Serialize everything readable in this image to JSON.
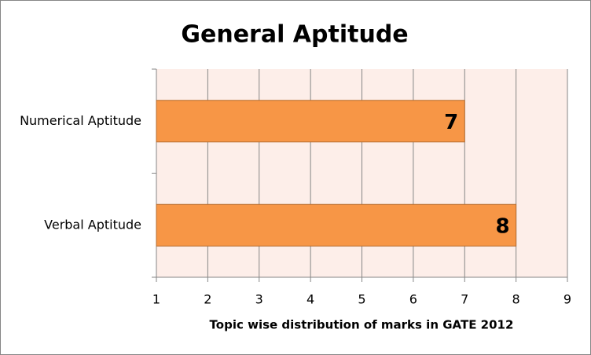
{
  "chart_data": {
    "type": "bar",
    "orientation": "horizontal",
    "title": "General Aptitude",
    "x_label": "Topic wise distribution of marks in GATE 2012",
    "categories": [
      "Numerical Aptitude",
      "Verbal Aptitude"
    ],
    "values": [
      7,
      8
    ],
    "color": "#f79646",
    "xlim": [
      1,
      9
    ],
    "xticks": [
      1,
      2,
      3,
      4,
      5,
      6,
      7,
      8,
      9
    ],
    "grid": true
  }
}
